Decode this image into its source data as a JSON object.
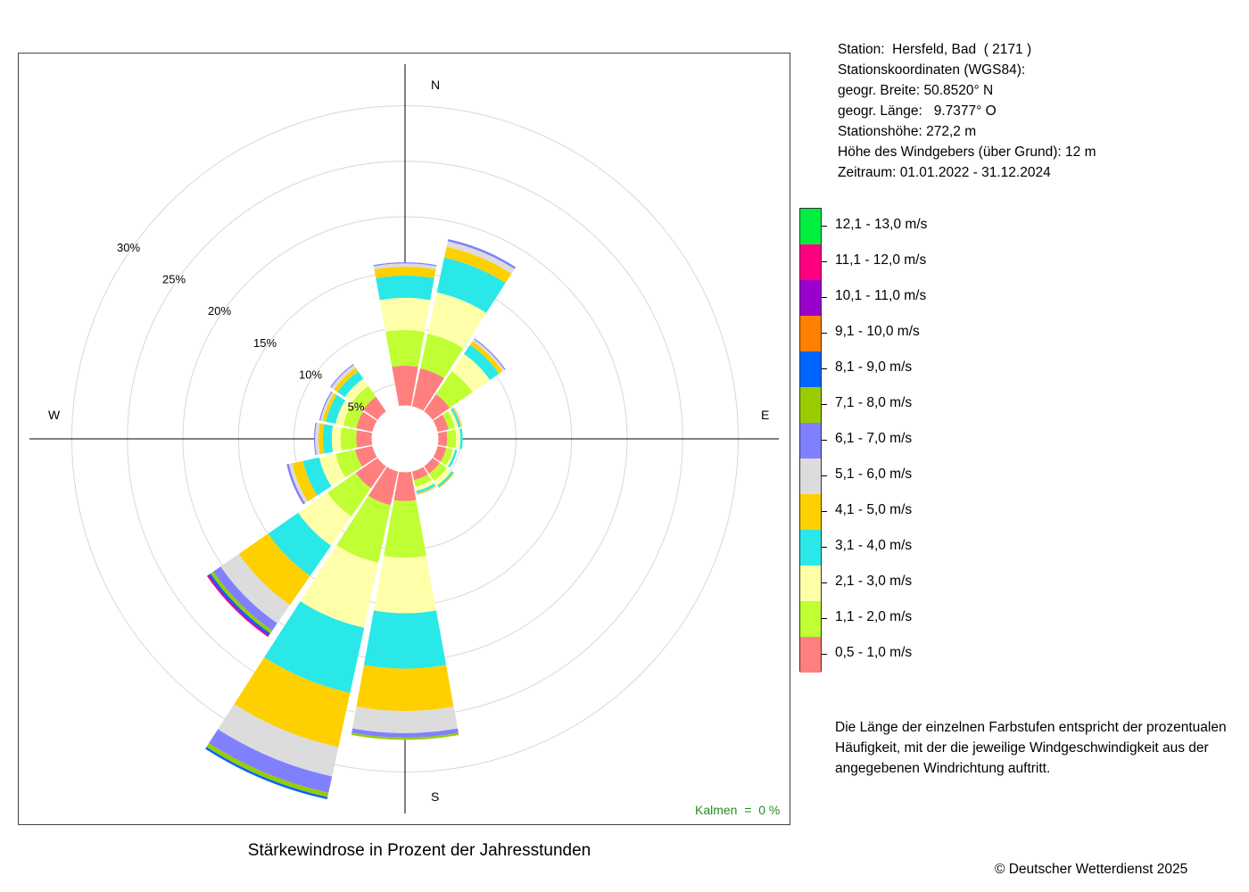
{
  "station": {
    "line_station": "Station:  Hersfeld, Bad  ( 2171 )",
    "line_coords_header": "Stationskoordinaten (WGS84):",
    "line_lat": "geogr. Breite: 50.8520° N",
    "line_lon": "geogr. Länge:   9.7377° O",
    "line_height": "Stationshöhe: 272,2 m",
    "line_sensor": "Höhe des Windgebers (über Grund): 12 m",
    "line_period": "Zeitraum: 01.01.2022 - 31.12.2024"
  },
  "note": "Die Länge der einzelnen Farbstufen entspricht der prozentualen Häufigkeit, mit der die jeweilige Windgeschwindigkeit aus der angegebenen Windrichtung auftritt.",
  "copyright": "© Deutscher Wetterdienst  2025",
  "calm_label": "Kalmen  =  0 %",
  "chart_data": {
    "type": "wind-rose",
    "title": "Stärkewindrose in Prozent der Jahresstunden",
    "directions": [
      "N",
      "NNE",
      "NE",
      "ENE",
      "E",
      "ESE",
      "SE",
      "SSE",
      "S",
      "SSW",
      "SW",
      "WSW",
      "W",
      "WNW",
      "NW",
      "NNW"
    ],
    "direction_labels": {
      "N": "N",
      "E": "E",
      "S": "S",
      "W": "W"
    },
    "radial_ticks": [
      5,
      10,
      15,
      20,
      25,
      30
    ],
    "radial_tick_labels": [
      "5%",
      "10%",
      "15%",
      "20%",
      "25%",
      "30%"
    ],
    "radial_max": 30,
    "classes": [
      {
        "label": "0,5 - 1,0 m/s",
        "color": "#FF7F7F"
      },
      {
        "label": "1,1 - 2,0 m/s",
        "color": "#BFFF33"
      },
      {
        "label": "2,1 - 3,0 m/s",
        "color": "#FFFFAA"
      },
      {
        "label": "3,1 - 4,0 m/s",
        "color": "#2AE8E8"
      },
      {
        "label": "4,1 - 5,0 m/s",
        "color": "#FFD000"
      },
      {
        "label": "5,1 - 6,0 m/s",
        "color": "#DCDCDC"
      },
      {
        "label": "6,1 - 7,0 m/s",
        "color": "#8080FF"
      },
      {
        "label": "7,1 - 8,0 m/s",
        "color": "#99CC00"
      },
      {
        "label": "8,1 - 9,0 m/s",
        "color": "#0064FF"
      },
      {
        "label": "9,1 - 10,0 m/s",
        "color": "#FF8000"
      },
      {
        "label": "10,1 - 11,0 m/s",
        "color": "#9900CC"
      },
      {
        "label": "11,1 - 12,0 m/s",
        "color": "#FF0080"
      },
      {
        "label": "12,1 - 13,0 m/s",
        "color": "#00EE40"
      }
    ],
    "inner_radius": 3,
    "series": [
      {
        "name": "N",
        "values": [
          3.6,
          3.2,
          2.9,
          2.0,
          0.8,
          0.3,
          0.1,
          0,
          0,
          0,
          0,
          0,
          0
        ]
      },
      {
        "name": "NNE",
        "values": [
          3.5,
          3.2,
          3.8,
          3.2,
          1.0,
          0.5,
          0.2,
          0,
          0,
          0,
          0,
          0,
          0
        ]
      },
      {
        "name": "NE",
        "values": [
          1.9,
          2.5,
          1.9,
          1.0,
          0.4,
          0.2,
          0.1,
          0,
          0,
          0,
          0,
          0,
          0
        ]
      },
      {
        "name": "ENE",
        "values": [
          1.0,
          0.6,
          0.3,
          0.2,
          0.1,
          0.1,
          0,
          0,
          0,
          0,
          0,
          0,
          0
        ]
      },
      {
        "name": "E",
        "values": [
          0.8,
          0.8,
          0.4,
          0.2,
          0,
          0,
          0,
          0,
          0,
          0,
          0,
          0,
          0
        ]
      },
      {
        "name": "ESE",
        "values": [
          0.8,
          0.6,
          0.2,
          0.2,
          0,
          0,
          0,
          0,
          0,
          0,
          0,
          0,
          0
        ]
      },
      {
        "name": "SE",
        "values": [
          0.8,
          0.8,
          0.5,
          0.2,
          0.1,
          0,
          0,
          0,
          0,
          0,
          0,
          0,
          0
        ]
      },
      {
        "name": "SSE",
        "values": [
          0.8,
          0.6,
          0.4,
          0.2,
          0.1,
          0.1,
          0,
          0,
          0,
          0,
          0,
          0,
          0
        ]
      },
      {
        "name": "S",
        "values": [
          2.6,
          5.1,
          5.0,
          5.0,
          3.8,
          2.0,
          0.4,
          0.2,
          0,
          0,
          0,
          0,
          0
        ]
      },
      {
        "name": "SSW",
        "values": [
          3.1,
          5.3,
          6.0,
          6.0,
          5.0,
          2.7,
          1.5,
          0.4,
          0.2,
          0,
          0,
          0,
          0
        ]
      },
      {
        "name": "SW",
        "values": [
          2.4,
          3.1,
          3.2,
          3.3,
          3.2,
          2.0,
          0.8,
          0.3,
          0.2,
          0,
          0.1,
          0.1,
          0
        ]
      },
      {
        "name": "WSW",
        "values": [
          1.6,
          1.8,
          1.5,
          1.5,
          1.0,
          0.3,
          0.2,
          0,
          0,
          0,
          0,
          0,
          0
        ]
      },
      {
        "name": "W",
        "values": [
          1.4,
          1.4,
          0.8,
          0.8,
          0.4,
          0.3,
          0.1,
          0,
          0,
          0,
          0,
          0,
          0
        ]
      },
      {
        "name": "WNW",
        "values": [
          1.5,
          1.2,
          0.7,
          0.9,
          0.3,
          0.2,
          0.1,
          0,
          0,
          0,
          0,
          0,
          0
        ]
      },
      {
        "name": "NW",
        "values": [
          1.6,
          1.2,
          0.8,
          0.8,
          0.4,
          0.3,
          0.1,
          0,
          0,
          0,
          0,
          0,
          0
        ]
      },
      {
        "name": "NNW",
        "values": [
          0,
          0,
          0,
          0,
          0,
          0,
          0,
          0,
          0,
          0,
          0,
          0,
          0
        ]
      }
    ],
    "grid": true,
    "legend_position": "right"
  }
}
